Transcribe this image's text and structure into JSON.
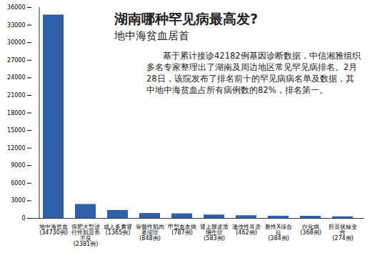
{
  "chart_data": {
    "type": "bar",
    "title": "湖南哪种罕见病最高发?",
    "subtitle": "地中海贫血居首",
    "annotations": [
      "基于累计接诊42182例基因诊断数据，中信湘雅组织多名专家整理出了湖南及周边地区常见罕见病排名。2月28日，该院发布了排名前十的罕见病病名单及数据，其中地中海贫血占所有病例数的82%，排名第一。"
    ],
    "categories": [
      "地中海贫血(34730例)",
      "假肥大型进行性肌营养不良(2381例)",
      "成人多囊肾(1365例)",
      "骨髓性肌肉萎缩症(848例)",
      "甲型血友病(787例)",
      "肾上腺皮质增生症(583例)",
      "遗传性耳聋(462例)",
      "脆性X综合征(384例)",
      "白化病(368例)",
      "肝豆状核变性(274例)"
    ],
    "values": [
      34730,
      2381,
      1365,
      848,
      787,
      583,
      462,
      384,
      368,
      274
    ],
    "color": "#2f5fa8",
    "ylim": [
      0,
      36000
    ],
    "yticks": [
      0,
      3000,
      6000,
      9000,
      12000,
      15000,
      18000,
      21000,
      24000,
      27000,
      30000,
      33000,
      36000
    ],
    "grid": false
  }
}
